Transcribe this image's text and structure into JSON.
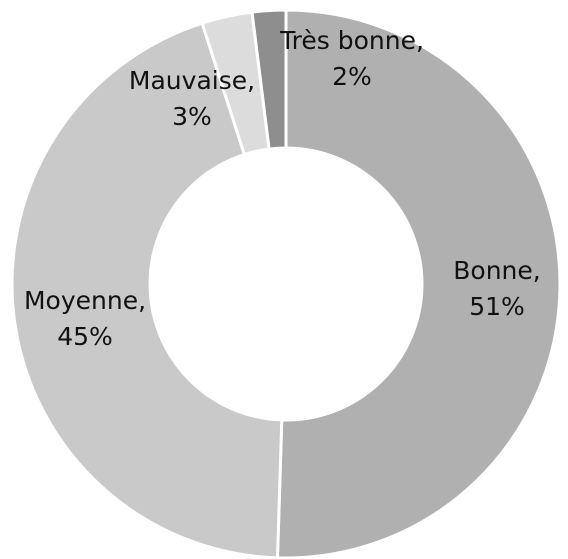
{
  "chart_data": {
    "type": "pie",
    "categories": [
      "Bonne,",
      "Moyenne,",
      "Mauvaise,",
      "Très bonne,"
    ],
    "values": [
      51,
      45,
      3,
      2
    ],
    "value_labels": [
      "51%",
      "45%",
      "3%",
      "2%"
    ],
    "colors": [
      "#b0b0b0",
      "#c9c9c9",
      "#dcdcdc",
      "#8e8e8e"
    ]
  }
}
